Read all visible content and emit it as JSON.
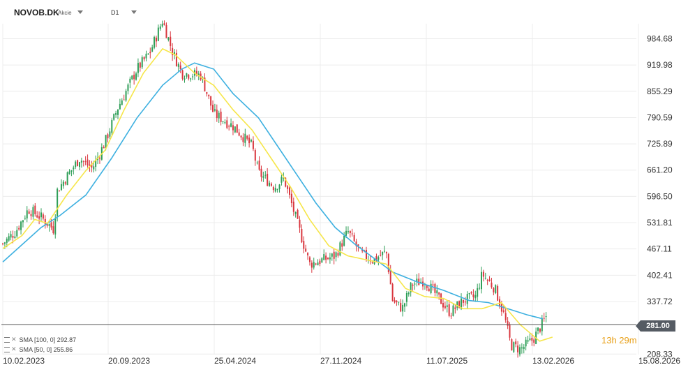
{
  "header": {
    "symbol": "NOVOB.DK",
    "symbol_type": "Akcie",
    "timeframe": "D1"
  },
  "legend": [
    {
      "label": "SMA [100, 0]",
      "value": "292.87",
      "color": "#3db0e0"
    },
    {
      "label": "SMA [50, 0]",
      "value": "255.86",
      "color": "#f6e64a"
    }
  ],
  "timer": "13h 29m",
  "last_price": "281.00",
  "colors": {
    "up": "#2e9e57",
    "down": "#d9363e",
    "sma100": "#3db0e0",
    "sma50": "#f6e64a",
    "grid": "#ececec"
  },
  "chart_data": {
    "type": "candlestick",
    "y_ticks": [
      "984.68",
      "919.98",
      "855.29",
      "790.59",
      "725.89",
      "661.20",
      "596.50",
      "531.81",
      "467.11",
      "402.41",
      "337.72",
      "208.33"
    ],
    "x_ticks": [
      "10.02.2023",
      "20.09.2023",
      "25.04.2024",
      "27.11.2024",
      "11.07.2025",
      "13.02.2026",
      "15.08.2026"
    ],
    "ylim": [
      208.33,
      984.68
    ],
    "last_price": 281.0,
    "price_path": [
      [
        0,
        480
      ],
      [
        0.04,
        510
      ],
      [
        0.08,
        565
      ],
      [
        0.12,
        545
      ],
      [
        0.16,
        515
      ],
      [
        0.17,
        610
      ],
      [
        0.2,
        645
      ],
      [
        0.24,
        690
      ],
      [
        0.28,
        665
      ],
      [
        0.32,
        730
      ],
      [
        0.36,
        815
      ],
      [
        0.42,
        910
      ],
      [
        0.46,
        950
      ],
      [
        0.5,
        1030
      ],
      [
        0.53,
        955
      ],
      [
        0.56,
        900
      ],
      [
        0.62,
        895
      ],
      [
        0.66,
        800
      ],
      [
        0.72,
        770
      ],
      [
        0.78,
        720
      ],
      [
        0.8,
        655
      ],
      [
        0.85,
        620
      ],
      [
        0.88,
        640
      ],
      [
        0.92,
        535
      ],
      [
        0.96,
        430
      ],
      [
        1.0,
        440
      ],
      [
        1.04,
        450
      ],
      [
        1.08,
        510
      ],
      [
        1.12,
        455
      ],
      [
        1.16,
        440
      ],
      [
        1.2,
        460
      ],
      [
        1.22,
        340
      ],
      [
        1.25,
        320
      ],
      [
        1.28,
        380
      ],
      [
        1.32,
        390
      ],
      [
        1.36,
        350
      ],
      [
        1.4,
        310
      ],
      [
        1.44,
        340
      ],
      [
        1.48,
        350
      ],
      [
        1.5,
        405
      ],
      [
        1.54,
        370
      ],
      [
        1.57,
        300
      ],
      [
        1.59,
        230
      ],
      [
        1.62,
        220
      ],
      [
        1.66,
        245
      ],
      [
        1.7,
        300
      ]
    ],
    "series": [
      {
        "name": "SMA [100, 0]",
        "points": [
          [
            0,
            435
          ],
          [
            0.12,
            520
          ],
          [
            0.18,
            550
          ],
          [
            0.26,
            600
          ],
          [
            0.34,
            690
          ],
          [
            0.42,
            790
          ],
          [
            0.5,
            870
          ],
          [
            0.56,
            910
          ],
          [
            0.6,
            925
          ],
          [
            0.66,
            910
          ],
          [
            0.72,
            850
          ],
          [
            0.8,
            790
          ],
          [
            0.86,
            720
          ],
          [
            0.92,
            650
          ],
          [
            0.98,
            580
          ],
          [
            1.04,
            520
          ],
          [
            1.1,
            480
          ],
          [
            1.16,
            445
          ],
          [
            1.22,
            410
          ],
          [
            1.3,
            385
          ],
          [
            1.38,
            365
          ],
          [
            1.46,
            340
          ],
          [
            1.52,
            335
          ],
          [
            1.58,
            320
          ],
          [
            1.64,
            305
          ],
          [
            1.69,
            295
          ]
        ]
      },
      {
        "name": "SMA [50, 0]",
        "points": [
          [
            0,
            468
          ],
          [
            0.06,
            500
          ],
          [
            0.1,
            540
          ],
          [
            0.14,
            530
          ],
          [
            0.2,
            600
          ],
          [
            0.26,
            660
          ],
          [
            0.32,
            710
          ],
          [
            0.38,
            810
          ],
          [
            0.44,
            900
          ],
          [
            0.5,
            960
          ],
          [
            0.54,
            945
          ],
          [
            0.6,
            900
          ],
          [
            0.66,
            870
          ],
          [
            0.72,
            810
          ],
          [
            0.78,
            760
          ],
          [
            0.84,
            690
          ],
          [
            0.9,
            620
          ],
          [
            0.96,
            540
          ],
          [
            1.02,
            475
          ],
          [
            1.08,
            450
          ],
          [
            1.14,
            440
          ],
          [
            1.2,
            430
          ],
          [
            1.26,
            370
          ],
          [
            1.32,
            350
          ],
          [
            1.38,
            345
          ],
          [
            1.44,
            320
          ],
          [
            1.5,
            320
          ],
          [
            1.56,
            335
          ],
          [
            1.62,
            280
          ],
          [
            1.68,
            240
          ],
          [
            1.72,
            250
          ]
        ]
      }
    ]
  }
}
